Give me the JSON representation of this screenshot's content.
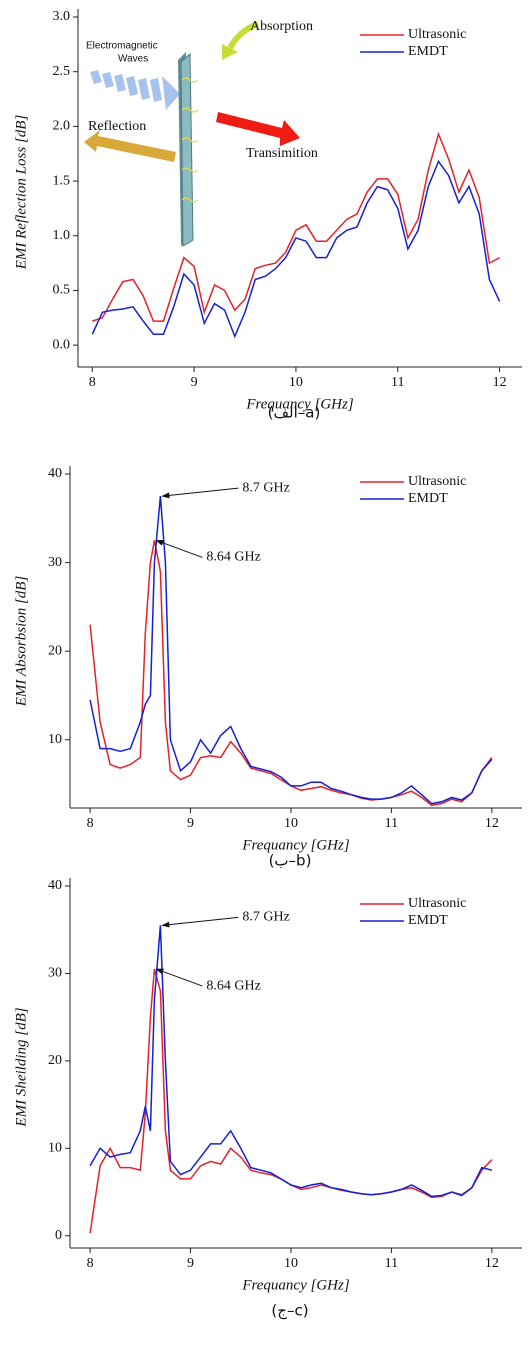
{
  "chart_data": [
    {
      "type": "line",
      "ylabel": "EMI Reflection Loss [dB]",
      "xlabel": "Frequancy [GHz]",
      "caption": "(الف–a)",
      "xlim": [
        7.86,
        12.22
      ],
      "ylim": [
        -0.2,
        3.0
      ],
      "xticks": [
        8,
        9,
        10,
        11,
        12
      ],
      "yticks": [
        {
          "value": 0,
          "label": "0.0"
        },
        0.5,
        {
          "value": 1,
          "label": "1.0"
        },
        1.5,
        {
          "value": 2,
          "label": "2.0"
        },
        2.5,
        {
          "value": 3,
          "label": "3.0"
        }
      ],
      "legend": "upper right",
      "inset_labels": {
        "waves": [
          "Electromagnetic",
          "Waves"
        ],
        "absorption": "Absorption",
        "reflection": "Reflection",
        "transmission": "Transimition"
      },
      "x": [
        8.0,
        8.1,
        8.2,
        8.3,
        8.4,
        8.5,
        8.6,
        8.7,
        8.8,
        8.9,
        9.0,
        9.1,
        9.2,
        9.3,
        9.4,
        9.5,
        9.6,
        9.7,
        9.8,
        9.9,
        10.0,
        10.1,
        10.2,
        10.3,
        10.4,
        10.5,
        10.6,
        10.7,
        10.8,
        10.9,
        11.0,
        11.1,
        11.2,
        11.3,
        11.4,
        11.5,
        11.6,
        11.7,
        11.8,
        11.9,
        12.0
      ],
      "series": [
        {
          "name": "Ultrasonic",
          "color": "#e8202a",
          "values": [
            0.22,
            0.25,
            0.42,
            0.58,
            0.6,
            0.45,
            0.22,
            0.22,
            0.52,
            0.8,
            0.72,
            0.3,
            0.55,
            0.5,
            0.32,
            0.42,
            0.7,
            0.73,
            0.75,
            0.85,
            1.05,
            1.1,
            0.95,
            0.95,
            1.05,
            1.15,
            1.2,
            1.4,
            1.52,
            1.52,
            1.38,
            0.98,
            1.15,
            1.6,
            1.93,
            1.7,
            1.4,
            1.6,
            1.35,
            0.75,
            0.8
          ]
        },
        {
          "name": "EMDT",
          "color": "#1420d8",
          "values": [
            0.1,
            0.3,
            0.32,
            0.33,
            0.35,
            0.22,
            0.1,
            0.1,
            0.35,
            0.65,
            0.55,
            0.2,
            0.38,
            0.32,
            0.08,
            0.3,
            0.6,
            0.63,
            0.7,
            0.8,
            0.98,
            0.95,
            0.8,
            0.8,
            0.98,
            1.05,
            1.08,
            1.3,
            1.45,
            1.42,
            1.25,
            0.88,
            1.05,
            1.45,
            1.68,
            1.55,
            1.3,
            1.45,
            1.2,
            0.6,
            0.4
          ]
        }
      ]
    },
    {
      "type": "line",
      "ylabel": "EMI Absorbsion [dB]",
      "xlabel": "Frequancy [GHz]",
      "caption": "(ب–b)",
      "xlim": [
        7.8,
        12.3
      ],
      "ylim": [
        2.3,
        40
      ],
      "xticks": [
        8,
        9,
        10,
        11,
        12
      ],
      "yticks": [
        10,
        20,
        30,
        40
      ],
      "legend": "upper right",
      "annotations": [
        {
          "text": "8.7 GHz",
          "x": 8.7,
          "y": 37.5
        },
        {
          "text": "8.64 GHz",
          "x": 8.64,
          "y": 32.5
        }
      ],
      "x": [
        8.0,
        8.1,
        8.2,
        8.3,
        8.4,
        8.5,
        8.55,
        8.6,
        8.64,
        8.7,
        8.75,
        8.8,
        8.9,
        9.0,
        9.1,
        9.2,
        9.3,
        9.4,
        9.5,
        9.6,
        9.7,
        9.8,
        9.9,
        10.0,
        10.1,
        10.2,
        10.3,
        10.4,
        10.5,
        10.6,
        10.7,
        10.8,
        10.9,
        11.0,
        11.1,
        11.2,
        11.3,
        11.4,
        11.5,
        11.6,
        11.7,
        11.8,
        11.9,
        12.0
      ],
      "series": [
        {
          "name": "Ultrasonic",
          "color": "#e8202a",
          "values": [
            23,
            12,
            7.2,
            6.8,
            7.2,
            8,
            22,
            30,
            32.5,
            29,
            12,
            6.5,
            5.5,
            6,
            8,
            8.2,
            8,
            9.8,
            8.5,
            6.8,
            6.5,
            6.2,
            5.5,
            4.8,
            4.3,
            4.5,
            4.7,
            4.3,
            4.0,
            3.8,
            3.4,
            3.2,
            3.3,
            3.5,
            3.8,
            4.2,
            3.5,
            2.6,
            2.8,
            3.3,
            3.0,
            4.0,
            6.5,
            8.0
          ]
        },
        {
          "name": "EMDT",
          "color": "#1420d8",
          "values": [
            14.5,
            9,
            9,
            8.7,
            9,
            12,
            14,
            15,
            30,
            37.5,
            30,
            10,
            6.5,
            7.5,
            10,
            8.5,
            10.5,
            11.5,
            9,
            7,
            6.7,
            6.4,
            5.8,
            4.8,
            4.8,
            5.2,
            5.2,
            4.5,
            4.2,
            3.8,
            3.5,
            3.3,
            3.3,
            3.5,
            4.0,
            4.8,
            3.8,
            2.8,
            3.0,
            3.5,
            3.2,
            4.0,
            6.5,
            7.8
          ]
        }
      ]
    },
    {
      "type": "line",
      "ylabel": "EMI Sheilding [dB]",
      "xlabel": "Frequancy [GHz]",
      "caption": "(ج–c)",
      "xlim": [
        7.8,
        12.3
      ],
      "ylim": [
        -1.4,
        40
      ],
      "xticks": [
        8,
        9,
        10,
        11,
        12
      ],
      "yticks": [
        0,
        10,
        20,
        30,
        40
      ],
      "legend": "upper right",
      "annotations": [
        {
          "text": "8.7 GHz",
          "x": 8.7,
          "y": 35.5
        },
        {
          "text": "8.64 GHz",
          "x": 8.64,
          "y": 30.5
        }
      ],
      "x": [
        8.0,
        8.1,
        8.2,
        8.3,
        8.4,
        8.5,
        8.55,
        8.6,
        8.64,
        8.7,
        8.75,
        8.8,
        8.9,
        9.0,
        9.1,
        9.2,
        9.3,
        9.4,
        9.5,
        9.6,
        9.7,
        9.8,
        9.9,
        10.0,
        10.1,
        10.2,
        10.3,
        10.4,
        10.5,
        10.6,
        10.7,
        10.8,
        10.9,
        11.0,
        11.1,
        11.2,
        11.3,
        11.4,
        11.5,
        11.6,
        11.7,
        11.8,
        11.9,
        12.0
      ],
      "series": [
        {
          "name": "Ultrasonic",
          "color": "#e8202a",
          "values": [
            0.3,
            8,
            10,
            7.8,
            7.8,
            7.5,
            14,
            25,
            30.5,
            28,
            12,
            7.5,
            6.5,
            6.5,
            8,
            8.5,
            8.2,
            10,
            9,
            7.5,
            7.2,
            7,
            6.5,
            5.8,
            5.3,
            5.5,
            5.8,
            5.5,
            5.2,
            5.0,
            4.8,
            4.7,
            4.8,
            5.0,
            5.3,
            5.5,
            5.0,
            4.4,
            4.5,
            5.0,
            4.7,
            5.5,
            7.5,
            8.7
          ]
        },
        {
          "name": "EMDT",
          "color": "#1420d8",
          "values": [
            8,
            10,
            9,
            9.3,
            9.5,
            12,
            14.8,
            12,
            27,
            35.5,
            20,
            8.5,
            7,
            7.5,
            9,
            10.5,
            10.5,
            12,
            10,
            7.8,
            7.5,
            7.2,
            6.5,
            5.8,
            5.5,
            5.8,
            6.0,
            5.5,
            5.3,
            5.0,
            4.8,
            4.7,
            4.8,
            5.0,
            5.3,
            5.8,
            5.2,
            4.5,
            4.6,
            5.0,
            4.6,
            5.5,
            7.8,
            7.5
          ]
        }
      ]
    }
  ]
}
